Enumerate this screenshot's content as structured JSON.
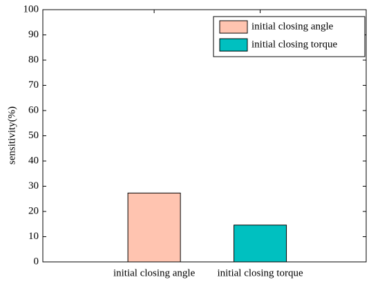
{
  "chart_data": {
    "type": "bar",
    "ylabel": "sensitivity(%)",
    "categories": [
      "initial closing angle",
      "initial closing torque"
    ],
    "values": [
      27.3,
      14.6
    ],
    "colors": [
      "#ffc4b0",
      "#00c0c0"
    ],
    "ylim": [
      0,
      100
    ],
    "yticks": [
      0,
      10,
      20,
      30,
      40,
      50,
      60,
      70,
      80,
      90,
      100
    ],
    "legend": "upper right"
  }
}
